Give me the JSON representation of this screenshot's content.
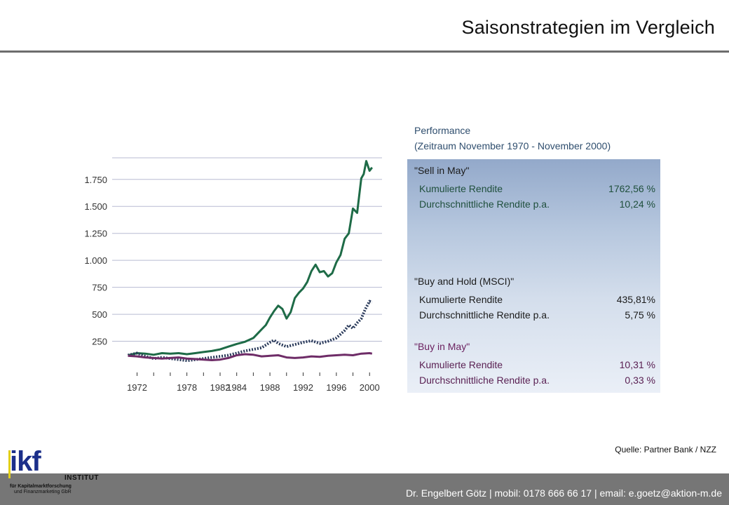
{
  "header": {
    "title": "Saisonstrategien im Vergleich"
  },
  "performance": {
    "heading": "Performance",
    "period": "(Zeitraum November 1970 - November 2000)",
    "groups": [
      {
        "name": "\"Sell in May\"",
        "rows": [
          {
            "label": "Kumulierte Rendite",
            "value": "1762,56 %"
          },
          {
            "label": "Durchschnittliche Rendite p.a.",
            "value": "10,24 %"
          }
        ]
      },
      {
        "name": "\"Buy and Hold (MSCI)\"",
        "rows": [
          {
            "label": "Kumulierte Rendite",
            "value": "435,81%"
          },
          {
            "label": "Durchschnittliche Rendite p.a.",
            "value": "5,75 %"
          }
        ]
      },
      {
        "name": "\"Buy in May\"",
        "rows": [
          {
            "label": "Kumulierte Rendite",
            "value": "10,31 %"
          },
          {
            "label": "Durchschnittliche Rendite p.a.",
            "value": "0,33 %"
          }
        ]
      }
    ]
  },
  "chart_data": {
    "type": "line",
    "title": "",
    "xlabel": "",
    "ylabel": "",
    "x_tick_labels": [
      "1972",
      "1978",
      "1982",
      "1984",
      "1988",
      "1992",
      "1996",
      "2000"
    ],
    "x_ticks": [
      1972,
      1978,
      1982,
      1984,
      1988,
      1992,
      1996,
      2000
    ],
    "y_tick_labels": [
      "250",
      "500",
      "750",
      "1.000",
      "1.250",
      "1.500",
      "1.750"
    ],
    "y_ticks": [
      250,
      500,
      750,
      1000,
      1250,
      1500,
      1750
    ],
    "xlim": [
      1969,
      2001.5
    ],
    "ylim": [
      0,
      1950
    ],
    "grid": true,
    "series": [
      {
        "color": "#1e6b47",
        "style": "solid",
        "x": [
          1970.9,
          1972,
          1973,
          1974,
          1975,
          1976,
          1977,
          1978,
          1979,
          1980,
          1981,
          1982,
          1983,
          1984,
          1985,
          1986,
          1986.5,
          1987,
          1987.5,
          1988,
          1988.5,
          1989,
          1989.5,
          1990,
          1990.5,
          1991,
          1991.5,
          1992,
          1992.5,
          1993,
          1993.5,
          1994,
          1994.5,
          1995,
          1995.5,
          1996,
          1996.5,
          1997,
          1997.5,
          1998,
          1998.5,
          1999,
          1999.3,
          1999.6,
          2000,
          2000.3
        ],
        "y": [
          120,
          140,
          135,
          125,
          140,
          135,
          140,
          130,
          140,
          150,
          160,
          175,
          200,
          225,
          245,
          280,
          320,
          360,
          400,
          470,
          530,
          580,
          550,
          460,
          520,
          650,
          700,
          740,
          800,
          900,
          960,
          890,
          900,
          850,
          880,
          980,
          1050,
          1200,
          1250,
          1480,
          1440,
          1760,
          1800,
          1920,
          1830,
          1860
        ]
      },
      {
        "color": "#2a3a5a",
        "style": "dotted",
        "x": [
          1970.9,
          1972,
          1973,
          1974,
          1975,
          1976,
          1977,
          1978,
          1979,
          1980,
          1981,
          1982,
          1983,
          1984,
          1985,
          1986,
          1987,
          1988,
          1988.5,
          1989,
          1990,
          1991,
          1992,
          1993,
          1994,
          1995,
          1996,
          1997,
          1997.5,
          1998,
          1998.5,
          1999,
          1999.5,
          2000,
          2000.3
        ],
        "y": [
          120,
          140,
          110,
          90,
          100,
          90,
          80,
          70,
          80,
          90,
          100,
          110,
          120,
          140,
          160,
          175,
          190,
          240,
          260,
          230,
          200,
          220,
          240,
          255,
          230,
          250,
          280,
          350,
          400,
          370,
          420,
          460,
          550,
          620,
          610
        ]
      },
      {
        "color": "#6e2c67",
        "style": "solid",
        "x": [
          1970.9,
          1972,
          1973,
          1974,
          1975,
          1976,
          1977,
          1978,
          1979,
          1980,
          1981,
          1982,
          1983,
          1984,
          1985,
          1986,
          1987,
          1988,
          1989,
          1990,
          1991,
          1992,
          1993,
          1994,
          1995,
          1996,
          1997,
          1998,
          1999,
          2000,
          2000.3
        ],
        "y": [
          115,
          110,
          100,
          95,
          90,
          95,
          100,
          90,
          85,
          80,
          75,
          80,
          95,
          120,
          130,
          125,
          110,
          115,
          120,
          100,
          95,
          100,
          110,
          105,
          115,
          120,
          125,
          120,
          135,
          140,
          135
        ]
      }
    ]
  },
  "source": "Quelle: Partner Bank / NZZ",
  "footer": {
    "contact": "Dr. Engelbert Götz  |  mobil: 0178 666 66 17  |  email: e.goetz@aktion-m.de"
  },
  "logo": {
    "brand": "ikf",
    "line_institut": "INSTITUT",
    "line1": "für Kapitalmarktforschung",
    "line2": "und Finanzmarketing GbR"
  },
  "colors": {
    "sell_in_may": "#1e6b47",
    "buy_and_hold": "#2a3a5a",
    "buy_in_may": "#6e2c67",
    "footer": "#767676"
  }
}
